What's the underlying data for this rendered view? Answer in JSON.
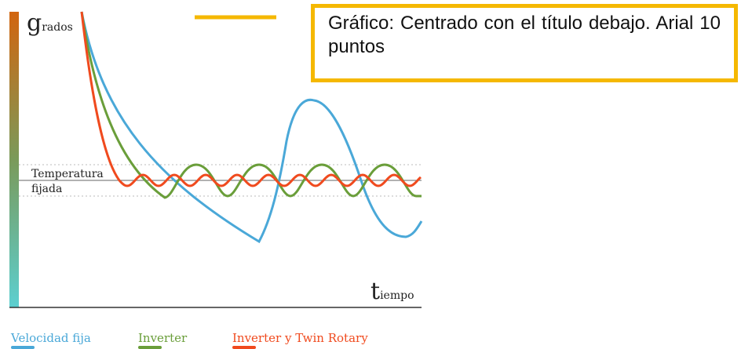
{
  "axis": {
    "y_label": "grados",
    "x_label": "tiempo"
  },
  "reference": {
    "label_line1": "Temperatura",
    "label_line2": "fijada"
  },
  "legend": [
    "Velocidad fija",
    "Inverter",
    "Inverter y Twin Rotary"
  ],
  "note": "Gráfico: Centrado con el título debajo. Arial 10 puntos"
}
